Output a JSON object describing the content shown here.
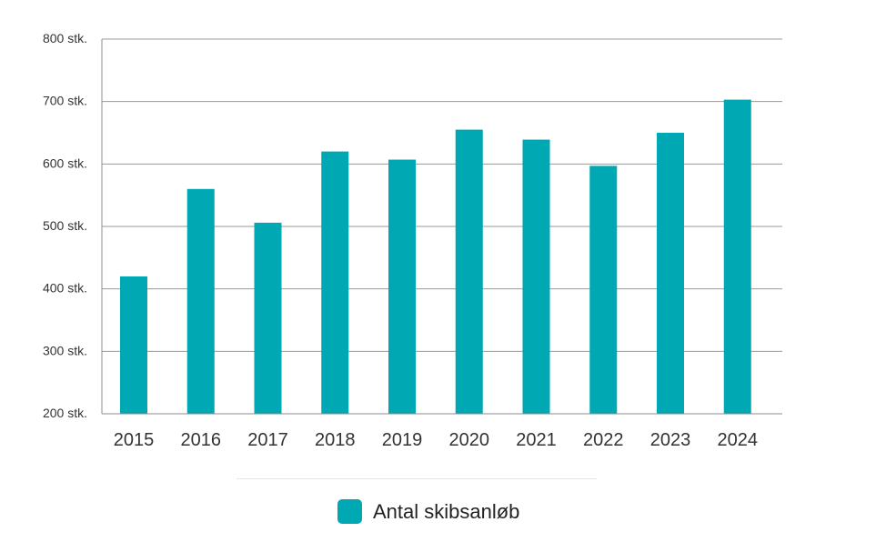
{
  "chart_data": {
    "type": "bar",
    "categories": [
      "2015",
      "2016",
      "2017",
      "2018",
      "2019",
      "2020",
      "2021",
      "2022",
      "2023",
      "2024"
    ],
    "series": [
      {
        "name": "Antal skibsanløb",
        "values": [
          420,
          560,
          506,
          620,
          607,
          655,
          639,
          597,
          650,
          703
        ],
        "color": "#00a8b4"
      }
    ],
    "y_ticks": [
      {
        "value": 200,
        "label": "200 stk."
      },
      {
        "value": 300,
        "label": "300 stk."
      },
      {
        "value": 400,
        "label": "400 stk."
      },
      {
        "value": 500,
        "label": "500 stk."
      },
      {
        "value": 600,
        "label": "600 stk."
      },
      {
        "value": 700,
        "label": "700 stk."
      },
      {
        "value": 800,
        "label": "800 stk."
      }
    ],
    "ylim": [
      200,
      800
    ],
    "grid": true,
    "legend_position": "bottom-center",
    "title": "",
    "xlabel": "",
    "ylabel": ""
  }
}
